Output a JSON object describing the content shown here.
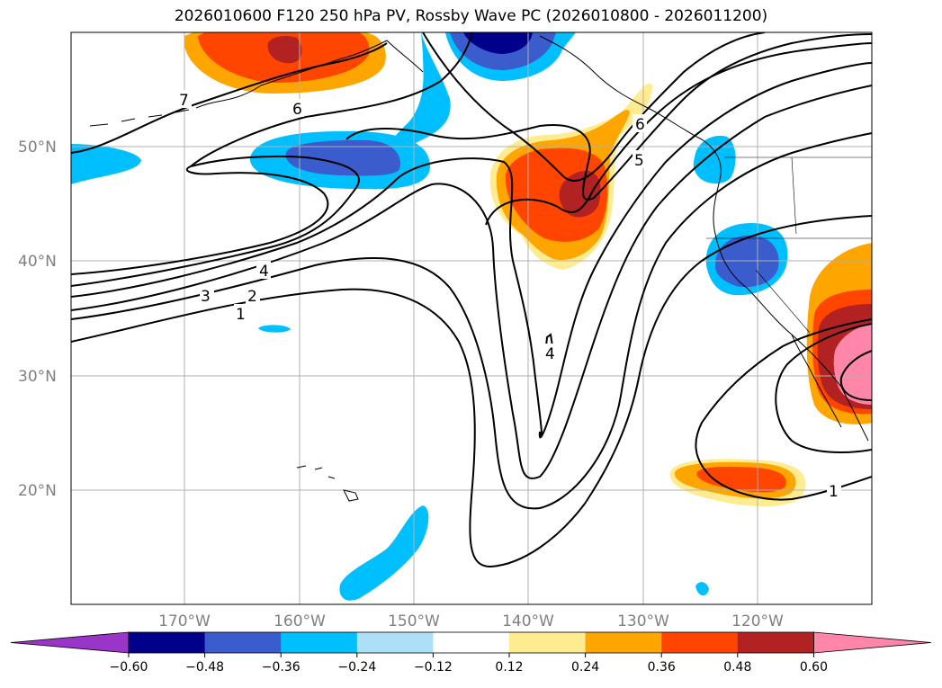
{
  "title": "2026010600 F120 250 hPa PV, Rossby Wave PC (2026010800 - 2026011200)",
  "map": {
    "region": "North Pacific",
    "lon_range": [
      -180,
      -110
    ],
    "lat_range": [
      10,
      60
    ],
    "lat_ticks": [
      "50°N",
      "40°N",
      "30°N",
      "20°N"
    ],
    "lon_ticks": [
      "170°W",
      "160°W",
      "150°W",
      "140°W",
      "130°W",
      "120°W"
    ],
    "grid": true
  },
  "contour_labels": [
    "7",
    "6",
    "6",
    "5",
    "4",
    "4",
    "3",
    "2",
    "1",
    "1"
  ],
  "colorbar": {
    "levels": [
      "−0.60",
      "−0.48",
      "−0.36",
      "−0.24",
      "−0.12",
      "0.12",
      "0.24",
      "0.36",
      "0.48",
      "0.60"
    ],
    "colors": [
      "#9a35c9",
      "#00008b",
      "#3a5ccc",
      "#00bfff",
      "#addff8",
      "#ffffff",
      "#ffeb90",
      "#ffa500",
      "#ff4500",
      "#b22222",
      "#ff86a8"
    ]
  }
}
